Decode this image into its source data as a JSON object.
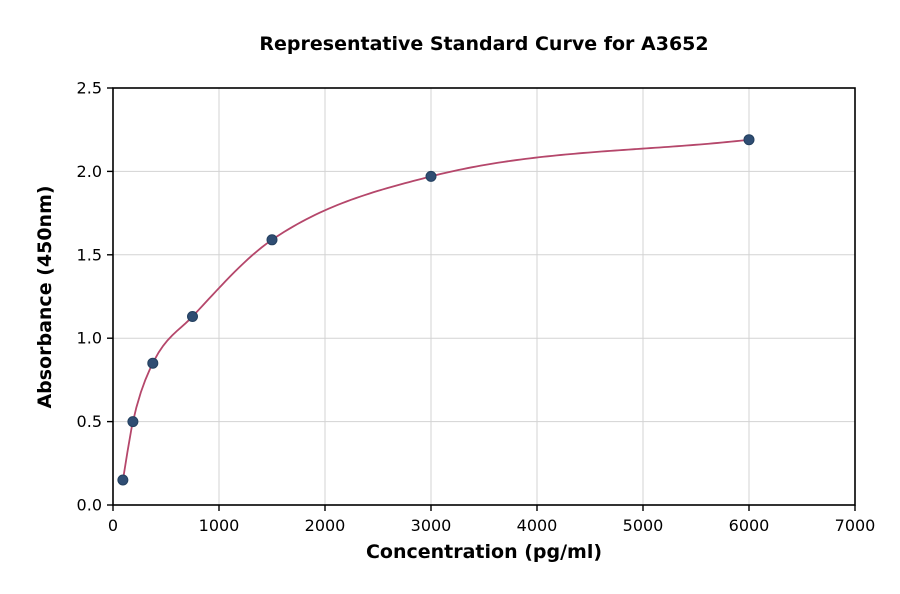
{
  "chart_data": {
    "type": "scatter",
    "title": "Representative Standard Curve for A3652",
    "xlabel": "Concentration (pg/ml)",
    "ylabel": "Absorbance (450nm)",
    "xlim": [
      0,
      7000
    ],
    "ylim": [
      0,
      2.5
    ],
    "x_ticks": [
      0,
      1000,
      2000,
      3000,
      4000,
      5000,
      6000,
      7000
    ],
    "x_tick_labels": [
      "0",
      "1000",
      "2000",
      "3000",
      "4000",
      "5000",
      "6000",
      "7000"
    ],
    "y_ticks": [
      0,
      0.5,
      1.0,
      1.5,
      2.0,
      2.5
    ],
    "y_tick_labels": [
      "0.0",
      "0.5",
      "1.0",
      "1.5",
      "2.0",
      "2.5"
    ],
    "grid": true,
    "legend": "none",
    "series": [
      {
        "name": "standards",
        "type": "scatter",
        "x": [
          93.75,
          187.5,
          375,
          750,
          1500,
          3000,
          6000
        ],
        "y": [
          0.15,
          0.5,
          0.85,
          1.13,
          1.59,
          1.97,
          2.19
        ]
      },
      {
        "name": "fitted-curve",
        "type": "line",
        "fit": "smooth-through-points"
      }
    ],
    "colors": {
      "points": "#2f4d73",
      "point_edge": "#24405f",
      "curve": "#b5476b",
      "grid": "#d3d3d3",
      "axis": "#000000"
    }
  }
}
